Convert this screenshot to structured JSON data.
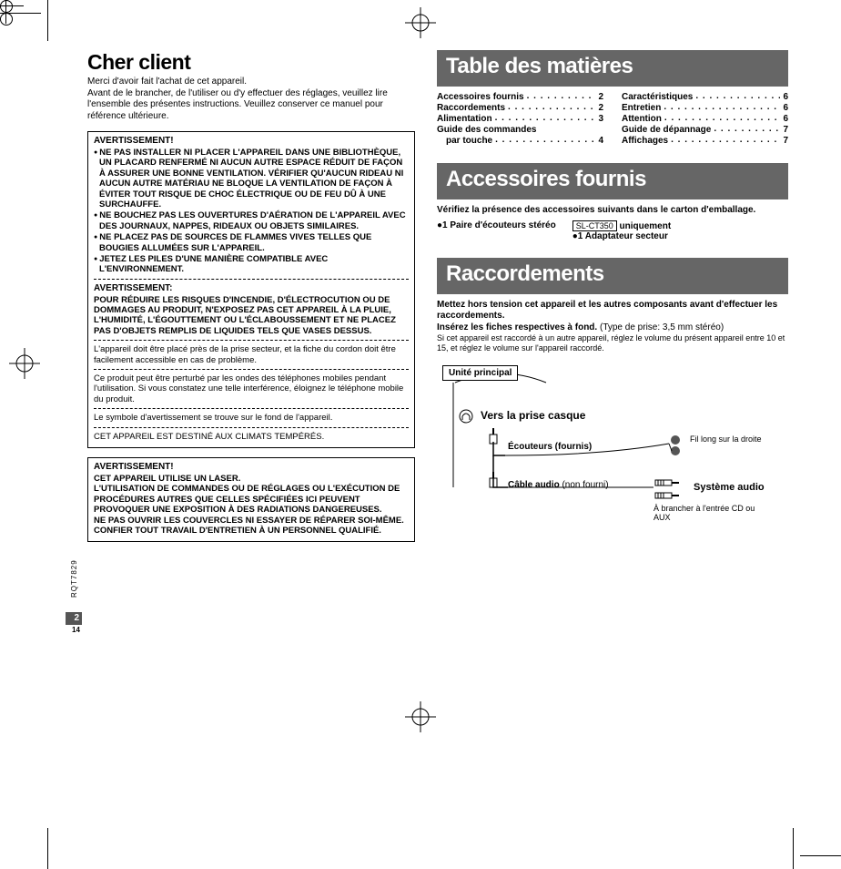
{
  "left": {
    "title": "Cher client",
    "intro_1": "Merci d'avoir fait l'achat de cet appareil.",
    "intro_2": "Avant de le brancher, de l'utiliser ou d'y effectuer des réglages, veuillez lire l'ensemble des présentes instructions. Veuillez conserver ce manuel pour référence ultérieure.",
    "warn1_title": "AVERTISSEMENT!",
    "warn1_b1": "NE PAS INSTALLER NI PLACER L'APPAREIL DANS UNE BIBLIOTHÈQUE, UN PLACARD RENFERMÉ NI AUCUN AUTRE ESPACE RÉDUIT DE FAÇON À ASSURER UNE BONNE VENTILATION. VÉRIFIER QU'AUCUN RIDEAU NI AUCUN AUTRE MATÉRIAU NE BLOQUE LA VENTILATION DE FAÇON À ÉVITER TOUT RISQUE DE CHOC ÉLECTRIQUE OU DE FEU DÛ À UNE SURCHAUFFE.",
    "warn1_b2": "NE BOUCHEZ PAS LES OUVERTURES D'AÉRATION DE L'APPAREIL AVEC DES JOURNAUX, NAPPES, RIDEAUX OU OBJETS SIMILAIRES.",
    "warn1_b3": "NE PLACEZ PAS DE SOURCES DE FLAMMES VIVES TELLES QUE BOUGIES ALLUMÉES SUR L'APPAREIL.",
    "warn1_b4": "JETEZ LES PILES D'UNE MANIÈRE COMPATIBLE AVEC L'ENVIRONNEMENT.",
    "warn2_title": "AVERTISSEMENT:",
    "warn2_p": "POUR RÉDUIRE LES RISQUES D'INCENDIE, D'ÉLECTROCUTION OU DE DOMMAGES AU PRODUIT, N'EXPOSEZ PAS CET APPAREIL À LA PLUIE, L'HUMIDITÉ, L'ÉGOUTTEMENT OU L'ÉCLABOUSSEMENT ET NE PLACEZ PAS D'OBJETS REMPLIS DE LIQUIDES TELS QUE VASES DESSUS.",
    "warn_plain1": "L'appareil doit être placé près de la prise secteur, et la fiche du cordon doit être facilement accessible en cas de problème.",
    "warn_plain2": "Ce produit peut être perturbé par les ondes des téléphones mobiles pendant l'utilisation. Si vous constatez une telle interférence, éloignez le téléphone mobile du produit.",
    "warn_plain3": "Le symbole d'avertissement se trouve sur le fond de l'appareil.",
    "warn_plain4": "CET APPAREIL EST DESTINÉ AUX CLIMATS TEMPÉRÉS.",
    "warn3_title": "AVERTISSEMENT!",
    "warn3_l1": "CET APPAREIL UTILISE UN LASER.",
    "warn3_l2": "L'UTILISATION DE COMMANDES OU DE RÉGLAGES OU L'EXÉCUTION DE PROCÉDURES AUTRES QUE CELLES SPÉCIFIÉES ICI PEUVENT PROVOQUER UNE EXPOSITION À DES RADIATIONS DANGEREUSES.",
    "warn3_l3": "NE PAS OUVRIR LES COUVERCLES NI ESSAYER DE RÉPARER SOI-MÊME. CONFIER TOUT TRAVAIL D'ENTRETIEN À UN PERSONNEL QUALIFIÉ."
  },
  "right": {
    "toc_title": "Table des matières",
    "toc_left": [
      {
        "label": "Accessoires fournis",
        "page": "2"
      },
      {
        "label": "Raccordements",
        "page": "2"
      },
      {
        "label": "Alimentation",
        "page": "3"
      },
      {
        "label": "Guide des commandes",
        "page": ""
      },
      {
        "label": "par touche",
        "page": "4",
        "indent": true
      }
    ],
    "toc_right": [
      {
        "label": "Caractéristiques",
        "page": "6"
      },
      {
        "label": "Entretien",
        "page": "6"
      },
      {
        "label": "Attention",
        "page": "6"
      },
      {
        "label": "Guide de dépannage",
        "page": "7"
      },
      {
        "label": "Affichages",
        "page": "7"
      }
    ],
    "acc_title": "Accessoires fournis",
    "acc_intro": "Vérifiez la présence des accessoires suivants dans le carton d'emballage.",
    "acc_l1": "1 Paire d'écouteurs stéréo",
    "acc_model": "SL-CT350",
    "acc_only": "uniquement",
    "acc_l2": "1 Adaptateur secteur",
    "racc_title": "Raccordements",
    "racc_p1": "Mettez hors tension cet appareil et les autres composants avant d'effectuer les raccordements.",
    "racc_p2a": "Insérez les fiches respectives à fond.",
    "racc_p2b": "(Type de prise:  3,5 mm stéréo)",
    "racc_p3": "Si cet appareil est raccordé à un autre appareil, réglez le volume du présent appareil entre 10 et 15, et réglez le volume sur l'appareil raccordé.",
    "diag_unit": "Unité principal",
    "diag_jack": "Vers la prise casque",
    "diag_ear": "Écouteurs (fournis)",
    "diag_cable": "Câble audio",
    "diag_cable_note": "(non fourni)",
    "diag_longwire": "Fil long sur la droite",
    "diag_sys": "Système audio",
    "diag_plug": "À brancher à l'entrée CD ou AUX"
  },
  "side_code": "RQT7829",
  "page_num": "2",
  "page_sub": "14"
}
